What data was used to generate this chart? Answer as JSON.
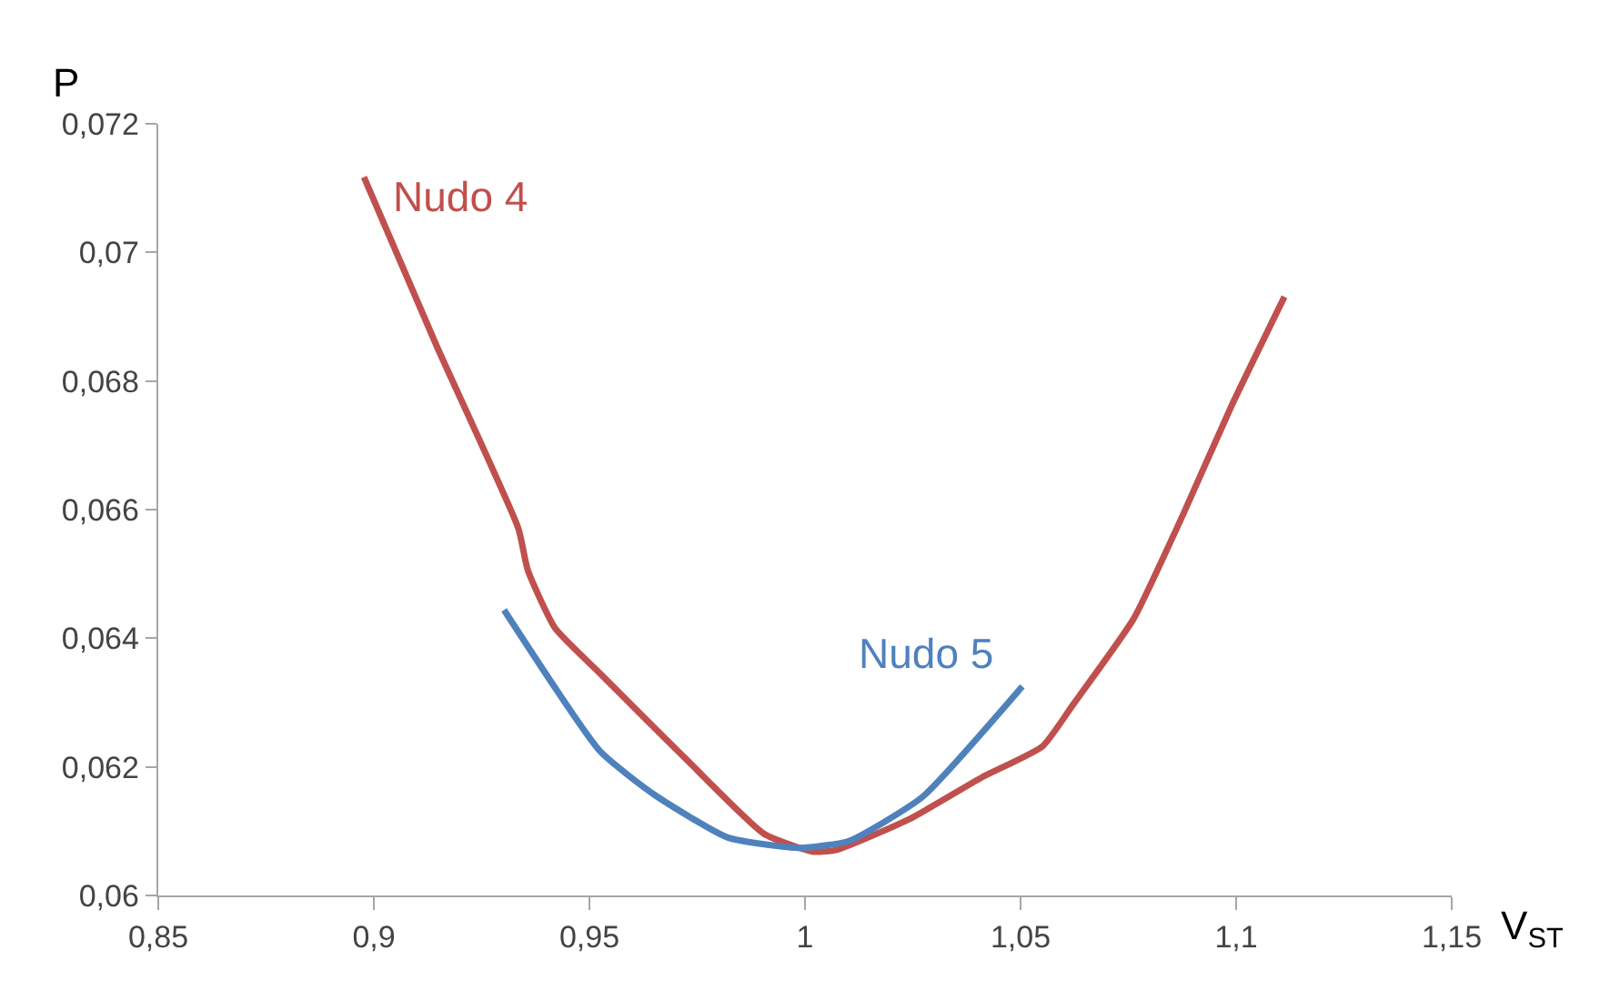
{
  "chart_data": {
    "type": "line",
    "xlabel": "V$_{ST}$",
    "ylabel": "P",
    "xlim": [
      0.85,
      1.15
    ],
    "xticks": [
      {
        "value": 0.85,
        "label": "0,85"
      },
      {
        "value": 0.9,
        "label": "0,9"
      },
      {
        "value": 0.95,
        "label": "0,95"
      },
      {
        "value": 1,
        "label": "1"
      },
      {
        "value": 1.05,
        "label": "1,05"
      },
      {
        "value": 1.1,
        "label": "1,1"
      },
      {
        "value": 1.15,
        "label": "1,15"
      }
    ],
    "ylim": [
      0.06,
      0.072
    ],
    "yticks": [
      {
        "value": 0.06,
        "label": "0,06"
      },
      {
        "value": 0.062,
        "label": "0,062"
      },
      {
        "value": 0.064,
        "label": "0,064"
      },
      {
        "value": 0.066,
        "label": "0,066"
      },
      {
        "value": 0.068,
        "label": "0,068"
      },
      {
        "value": 0.07,
        "label": "0,07"
      },
      {
        "value": 0.072,
        "label": "0,072"
      }
    ],
    "grid": false,
    "legend": false,
    "marker": "none",
    "line_style": "solid",
    "series": [
      {
        "name": "Nudo 4",
        "color": "#c0504d",
        "x": [
          0.8977,
          0.9146,
          0.9335,
          0.9357,
          0.942,
          0.9525,
          0.9736,
          0.9905,
          1.0019,
          1.0074,
          1.0243,
          1.0411,
          1.0551,
          1.0622,
          1.0762,
          1.0876,
          1.0989,
          1.1112
        ],
        "values": [
          0.07117,
          0.06854,
          0.06571,
          0.06506,
          0.06416,
          0.06345,
          0.06204,
          0.06096,
          0.06068,
          0.06071,
          0.06119,
          0.06184,
          0.06232,
          0.06297,
          0.0643,
          0.06591,
          0.06761,
          0.06931
        ]
      },
      {
        "name": "Nudo 5",
        "color": "#4f81bd",
        "x": [
          0.9302,
          0.9525,
          0.9652,
          0.9821,
          0.9989,
          1.0103,
          1.0272,
          1.0504
        ],
        "values": [
          0.06444,
          0.06224,
          0.06156,
          0.0609,
          0.06074,
          0.06085,
          0.06153,
          0.06325
        ]
      }
    ]
  }
}
